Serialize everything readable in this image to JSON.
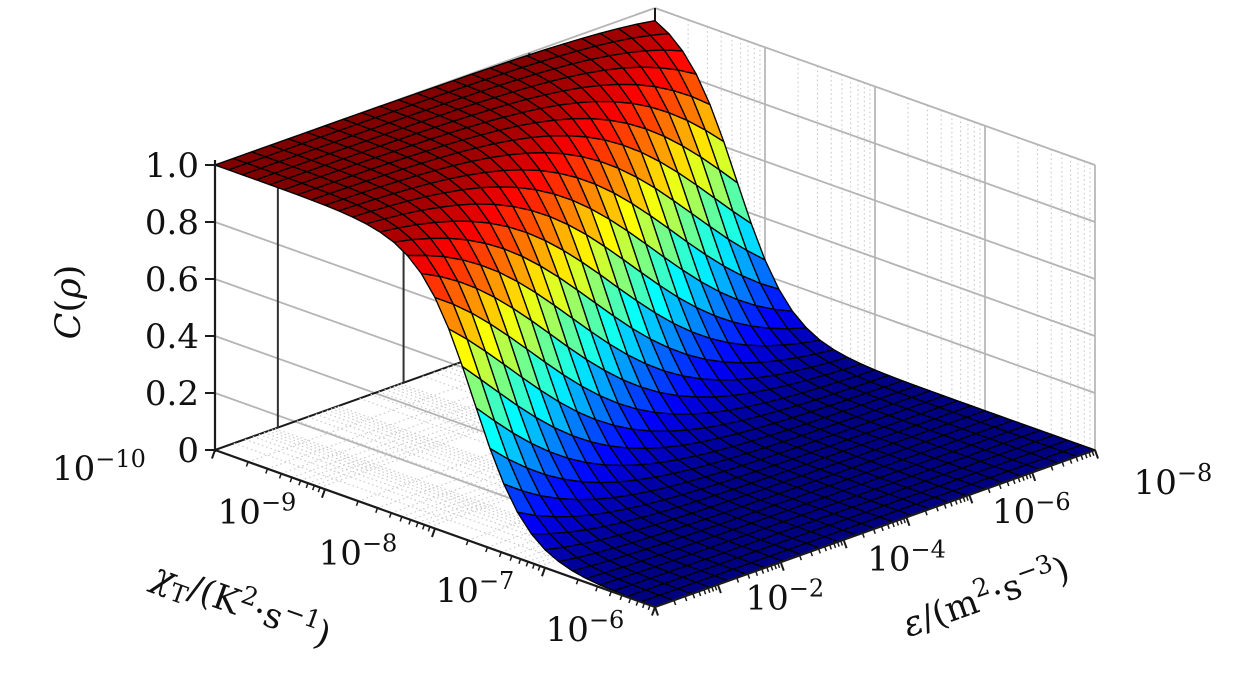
{
  "figure": {
    "title": "",
    "background": "#ffffff"
  },
  "chart_data": {
    "type": "surface",
    "title": "",
    "x_axis": {
      "label_text": "χT/(K2⋅s−1)",
      "label_tokens": [
        {
          "t": "χ",
          "it": true
        },
        {
          "t": "T",
          "sub": true
        },
        {
          "t": "/(K"
        },
        {
          "t": "2",
          "sup": true
        },
        {
          "t": "⋅s"
        },
        {
          "t": "−1",
          "sup": true
        },
        {
          "t": ")"
        }
      ],
      "scale": "log10",
      "range_exponents": [
        -10,
        -6
      ],
      "major_tick_display": [
        "−10",
        "−9",
        "−8",
        "−7",
        "−6"
      ],
      "minor_log_ticks": true
    },
    "y_axis": {
      "label_text": "ε/(m2⋅s−3)",
      "label_tokens": [
        {
          "t": "ε",
          "it": true
        },
        {
          "t": "/(m"
        },
        {
          "t": "2",
          "sup": true
        },
        {
          "t": "⋅s"
        },
        {
          "t": "−3",
          "sup": true
        },
        {
          "t": ")"
        }
      ],
      "scale": "log10",
      "range_exponents": [
        -1,
        -8
      ],
      "direction": "reversed",
      "labeled_tick_exponents_numeric": [
        -2,
        -4,
        -6,
        -8
      ],
      "labeled_tick_display": [
        "−2",
        "−4",
        "−6",
        "−8"
      ],
      "wall_marked_exponents": [
        -2,
        -4,
        -6
      ],
      "minor_log_ticks": true
    },
    "z_axis": {
      "label_text": "C(ρ)",
      "label_tokens": [
        {
          "t": "C",
          "it": true
        },
        {
          "t": "("
        },
        {
          "t": "ρ",
          "it": true
        },
        {
          "t": ")"
        }
      ],
      "range": [
        0,
        1
      ],
      "tick_display": [
        "0",
        "0.2",
        "0.4",
        "0.6",
        "0.8",
        "1.0"
      ]
    },
    "surface_model": {
      "description": "sigmoid cliff: high plateau C=1 at small chi_T, drops to C=0 at large chi_T; cliff midpoint shifts to smaller chi_T as epsilon decreases",
      "C_formula": "C = 1/(1+10^(k*(log10(chi_T)-m)))",
      "k": 1.8,
      "m_formula": "m = -7.65 + 0.23*(log10(eps)+1)",
      "plateau_value": 1.0,
      "floor_value": 0.0
    },
    "colormap": {
      "name": "jet",
      "low": "#000080",
      "high": "#800000"
    },
    "mesh": {
      "n_chi": 32,
      "n_eps": 24
    }
  },
  "style": {
    "axis_color": "#1a1a1a",
    "grid_major": "#b4b4b4",
    "grid_minor": "#c8c8c8",
    "wall_dark_line": "#303030",
    "surface_edge": "#000000",
    "text_color": "#111111"
  }
}
